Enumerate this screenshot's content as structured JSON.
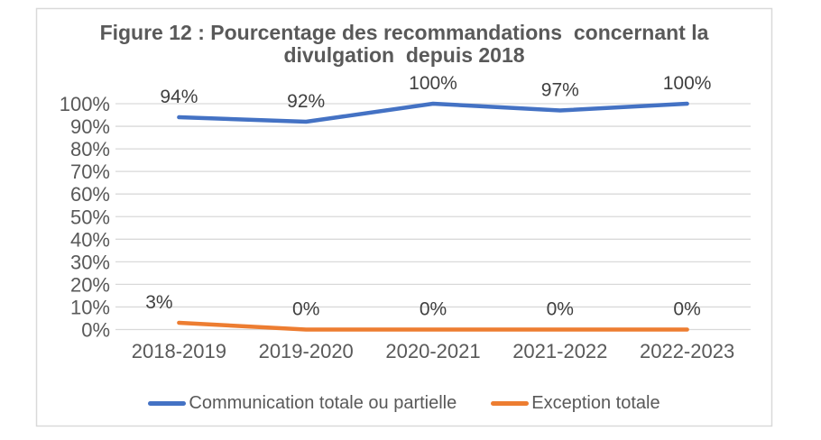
{
  "figure": {
    "title_lines": [
      "Figure 12 : Pourcentage des recommandations  concernant la",
      "divulgation  depuis 2018"
    ]
  },
  "chart_data": {
    "type": "line",
    "title": "Figure 12 : Pourcentage des recommandations concernant la divulgation depuis 2018",
    "categories": [
      "2018-2019",
      "2019-2020",
      "2020-2021",
      "2021-2022",
      "2022-2023"
    ],
    "series": [
      {
        "name": "Communication totale ou partielle",
        "values": [
          94,
          92,
          100,
          97,
          100
        ],
        "labels": [
          "94%",
          "92%",
          "100%",
          "97%",
          "100%"
        ],
        "label_dx": [
          0,
          0,
          0,
          0,
          0
        ],
        "color": "#4472C4"
      },
      {
        "name": "Exception totale",
        "values": [
          3,
          0,
          0,
          0,
          0
        ],
        "labels": [
          "3%",
          "0%",
          "0%",
          "0%",
          "0%"
        ],
        "label_dx": [
          -22,
          0,
          0,
          0,
          0
        ],
        "color": "#ED7D31"
      }
    ],
    "ylim": [
      0,
      100
    ],
    "yticks": [
      "0%",
      "10%",
      "20%",
      "30%",
      "40%",
      "50%",
      "60%",
      "70%",
      "80%",
      "90%",
      "100%"
    ],
    "grid": true,
    "legend_position": "bottom",
    "colors": {
      "gridline": "#D9D9D9",
      "chart_border": "#D9D9D9",
      "axis_text": "#595959",
      "data_label_text": "#404040",
      "title_text": "#595959",
      "background": "#FFFFFF"
    }
  }
}
